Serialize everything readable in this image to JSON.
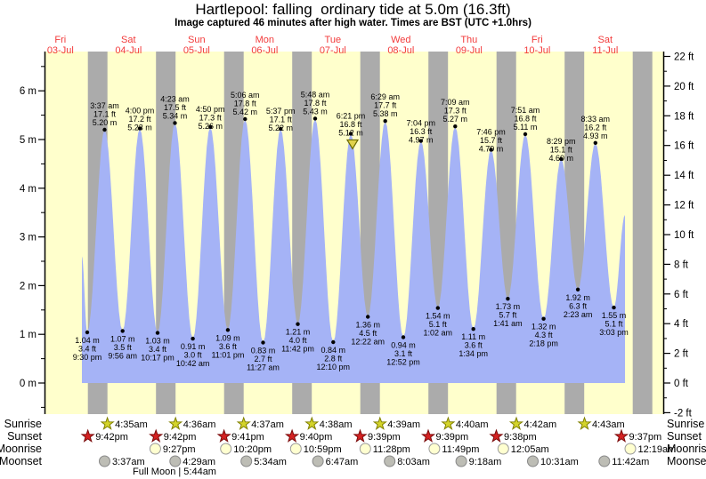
{
  "title": "Hartlepool: falling  ordinary tide at 5.0m (16.3ft)",
  "subtitle": "Image captured 46 minutes after high water. Times are BST (UTC +1.0hrs)",
  "chart_data": {
    "type": "area",
    "location": "Hartlepool",
    "days": [
      {
        "weekday": "Fri",
        "date": "03-Jul"
      },
      {
        "weekday": "Sat",
        "date": "04-Jul"
      },
      {
        "weekday": "Sun",
        "date": "05-Jul"
      },
      {
        "weekday": "Mon",
        "date": "06-Jul"
      },
      {
        "weekday": "Tue",
        "date": "07-Jul"
      },
      {
        "weekday": "Wed",
        "date": "08-Jul"
      },
      {
        "weekday": "Thu",
        "date": "09-Jul"
      },
      {
        "weekday": "Fri",
        "date": "10-Jul"
      },
      {
        "weekday": "Sat",
        "date": "11-Jul"
      }
    ],
    "y_axis_left": {
      "unit": "m",
      "labels": [
        "0 m",
        "1 m",
        "2 m",
        "3 m",
        "4 m",
        "5 m",
        "6 m"
      ]
    },
    "y_axis_right": {
      "unit": "ft",
      "labels": [
        "-2 ft",
        "0 ft",
        "2 ft",
        "4 ft",
        "6 ft",
        "8 ft",
        "10 ft",
        "12 ft",
        "14 ft",
        "16 ft",
        "18 ft",
        "20 ft",
        "22 ft"
      ]
    },
    "tide_events": [
      {
        "day": 0,
        "type": "low",
        "time": "9:30 pm",
        "meters": 1.04,
        "feet": 3.4
      },
      {
        "day": 1,
        "type": "high",
        "time": "3:37 am",
        "meters": 5.2,
        "feet": 17.1
      },
      {
        "day": 1,
        "type": "low",
        "time": "9:56 am",
        "meters": 1.07,
        "feet": 3.5
      },
      {
        "day": 1,
        "type": "high",
        "time": "4:00 pm",
        "meters": 5.23,
        "feet": 17.2
      },
      {
        "day": 1,
        "type": "low",
        "time": "10:17 pm",
        "meters": 1.03,
        "feet": 3.4
      },
      {
        "day": 2,
        "type": "high",
        "time": "4:23 am",
        "meters": 5.34,
        "feet": 17.5
      },
      {
        "day": 2,
        "type": "low",
        "time": "10:42 am",
        "meters": 0.91,
        "feet": 3.0
      },
      {
        "day": 2,
        "type": "high",
        "time": "4:50 pm",
        "meters": 5.26,
        "feet": 17.3
      },
      {
        "day": 2,
        "type": "low",
        "time": "11:01 pm",
        "meters": 1.09,
        "feet": 3.6
      },
      {
        "day": 3,
        "type": "high",
        "time": "5:06 am",
        "meters": 5.42,
        "feet": 17.8
      },
      {
        "day": 3,
        "type": "low",
        "time": "11:27 am",
        "meters": 0.83,
        "feet": 2.7
      },
      {
        "day": 3,
        "type": "high",
        "time": "5:37 pm",
        "meters": 5.22,
        "feet": 17.1
      },
      {
        "day": 3,
        "type": "low",
        "time": "11:42 pm",
        "meters": 1.21,
        "feet": 4.0
      },
      {
        "day": 4,
        "type": "high",
        "time": "5:48 am",
        "meters": 5.43,
        "feet": 17.8
      },
      {
        "day": 4,
        "type": "low",
        "time": "12:10 pm",
        "meters": 0.84,
        "feet": 2.8
      },
      {
        "day": 4,
        "type": "high",
        "time": "6:21 pm",
        "meters": 5.12,
        "feet": 16.8,
        "marker": true
      },
      {
        "day": 5,
        "type": "low",
        "time": "12:22 am",
        "meters": 1.36,
        "feet": 4.5
      },
      {
        "day": 5,
        "type": "high",
        "time": "6:29 am",
        "meters": 5.38,
        "feet": 17.7
      },
      {
        "day": 5,
        "type": "low",
        "time": "12:52 pm",
        "meters": 0.94,
        "feet": 3.1
      },
      {
        "day": 5,
        "type": "high",
        "time": "7:04 pm",
        "meters": 4.97,
        "feet": 16.3
      },
      {
        "day": 6,
        "type": "low",
        "time": "1:02 am",
        "meters": 1.54,
        "feet": 5.1
      },
      {
        "day": 6,
        "type": "high",
        "time": "7:09 am",
        "meters": 5.27,
        "feet": 17.3
      },
      {
        "day": 6,
        "type": "low",
        "time": "1:34 pm",
        "meters": 1.11,
        "feet": 3.6
      },
      {
        "day": 6,
        "type": "high",
        "time": "7:46 pm",
        "meters": 4.79,
        "feet": 15.7
      },
      {
        "day": 7,
        "type": "low",
        "time": "1:41 am",
        "meters": 1.73,
        "feet": 5.7
      },
      {
        "day": 7,
        "type": "high",
        "time": "7:51 am",
        "meters": 5.11,
        "feet": 16.8
      },
      {
        "day": 7,
        "type": "low",
        "time": "2:18 pm",
        "meters": 1.32,
        "feet": 4.3
      },
      {
        "day": 7,
        "type": "high",
        "time": "8:29 pm",
        "meters": 4.6,
        "feet": 15.1
      },
      {
        "day": 8,
        "type": "low",
        "time": "2:23 am",
        "meters": 1.92,
        "feet": 6.3
      },
      {
        "day": 8,
        "type": "high",
        "time": "8:33 am",
        "meters": 4.93,
        "feet": 16.2
      },
      {
        "day": 8,
        "type": "low",
        "time": "3:03 pm",
        "meters": 1.55,
        "feet": 5.1
      }
    ],
    "astro": {
      "sunrise": {
        "label": "Sunrise",
        "entries": [
          {
            "day": 1,
            "time": "4:35am"
          },
          {
            "day": 2,
            "time": "4:36am"
          },
          {
            "day": 3,
            "time": "4:37am"
          },
          {
            "day": 4,
            "time": "4:38am"
          },
          {
            "day": 5,
            "time": "4:39am"
          },
          {
            "day": 6,
            "time": "4:40am"
          },
          {
            "day": 7,
            "time": "4:42am"
          },
          {
            "day": 8,
            "time": "4:43am"
          }
        ]
      },
      "sunset": {
        "label": "Sunset",
        "entries": [
          {
            "day": 0,
            "time": "9:42pm"
          },
          {
            "day": 1,
            "time": "9:42pm"
          },
          {
            "day": 2,
            "time": "9:41pm"
          },
          {
            "day": 3,
            "time": "9:40pm"
          },
          {
            "day": 4,
            "time": "9:39pm"
          },
          {
            "day": 5,
            "time": "9:39pm"
          },
          {
            "day": 6,
            "time": "9:38pm"
          },
          {
            "day": 7,
            "time": "9:37pm"
          }
        ]
      },
      "moonrise": {
        "label": "Moonrise",
        "entries": [
          {
            "day": 1,
            "time": "9:27pm"
          },
          {
            "day": 2,
            "time": "10:20pm"
          },
          {
            "day": 3,
            "time": "10:59pm"
          },
          {
            "day": 4,
            "time": "11:28pm"
          },
          {
            "day": 5,
            "time": "11:49pm"
          },
          {
            "day": 7,
            "time": "12:05am"
          },
          {
            "day": 8,
            "time": "12:19am"
          }
        ]
      },
      "moonset": {
        "label": "Moonset",
        "entries": [
          {
            "day": 1,
            "time": "3:37am"
          },
          {
            "day": 2,
            "time": "4:29am"
          },
          {
            "day": 3,
            "time": "5:34am"
          },
          {
            "day": 4,
            "time": "6:47am"
          },
          {
            "day": 5,
            "time": "8:03am"
          },
          {
            "day": 6,
            "time": "9:18am"
          },
          {
            "day": 7,
            "time": "10:31am"
          },
          {
            "day": 8,
            "time": "11:42am"
          }
        ]
      },
      "full_moon_note": "Full Moon | 5:44am"
    },
    "colors": {
      "background": "#ffffcc",
      "night": "#ababab",
      "tide": "#a5b3f6",
      "day_label": "#f23b3b",
      "sunrise_star": "#d4d42a",
      "sunset_star": "#d42222",
      "moonrise_circle": "#ffffd0",
      "moonset_circle": "#bdbdb5",
      "marker": "#e0d24a"
    }
  }
}
